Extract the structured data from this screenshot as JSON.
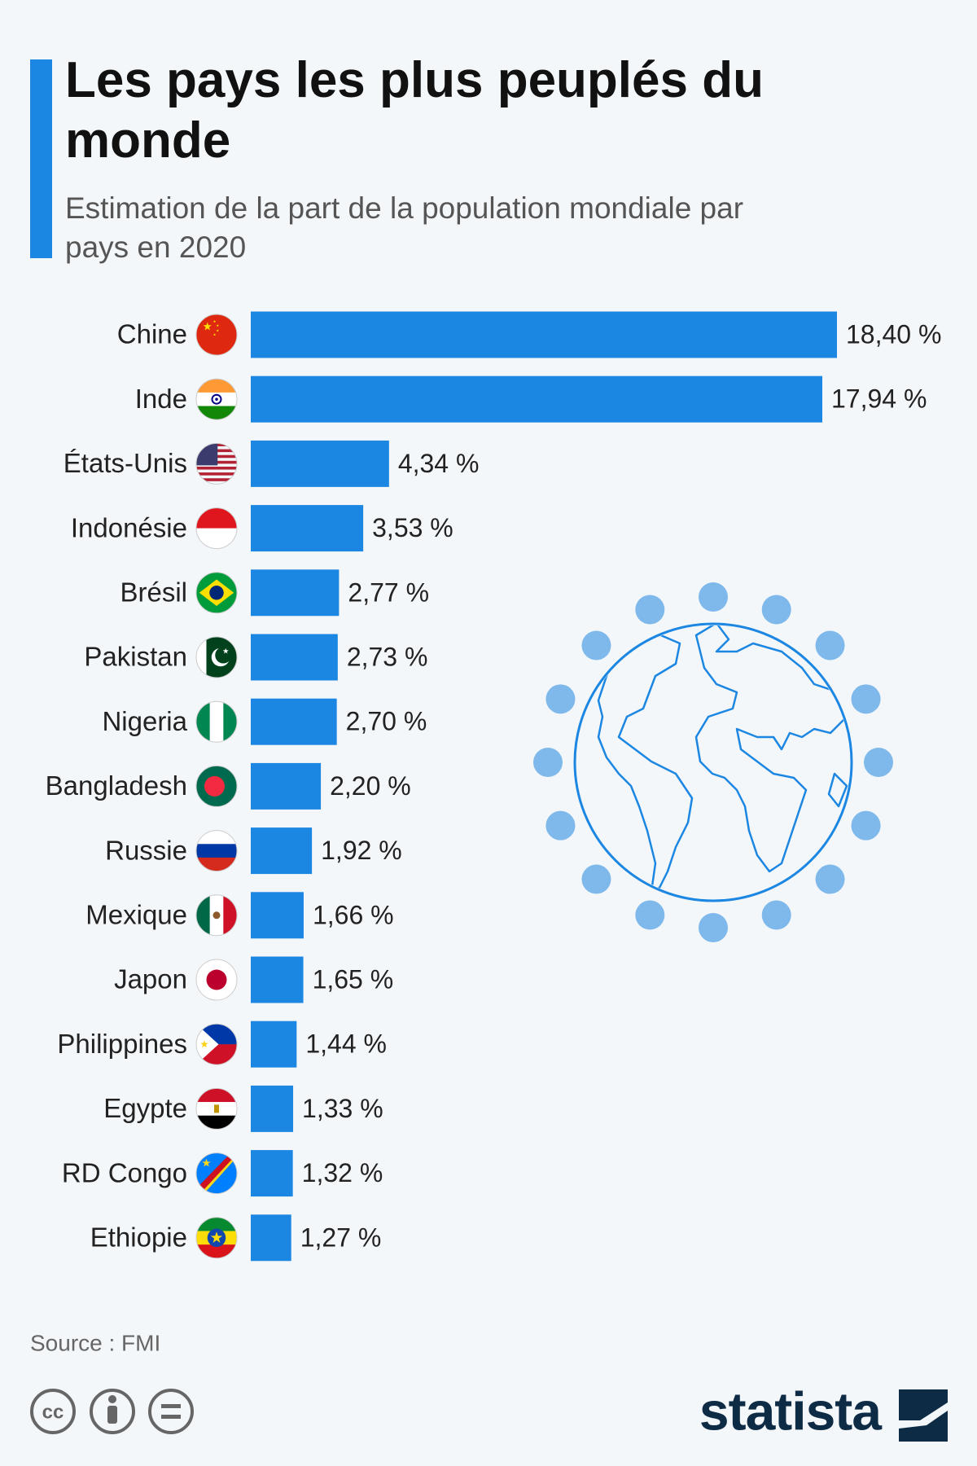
{
  "chart_data": {
    "type": "bar",
    "orientation": "horizontal",
    "title": "Les pays les plus peuplés du monde",
    "subtitle": "Estimation de la part de la population mondiale par pays en 2020",
    "categories": [
      "Chine",
      "Inde",
      "États-Unis",
      "Indonésie",
      "Brésil",
      "Pakistan",
      "Nigeria",
      "Bangladesh",
      "Russie",
      "Mexique",
      "Japon",
      "Philippines",
      "Egypte",
      "RD Congo",
      "Ethiopie"
    ],
    "values": [
      18.4,
      17.94,
      4.34,
      3.53,
      2.77,
      2.73,
      2.7,
      2.2,
      1.92,
      1.66,
      1.65,
      1.44,
      1.33,
      1.32,
      1.27
    ],
    "value_labels": [
      "18,40 %",
      "17,94 %",
      "4,34 %",
      "3,53 %",
      "2,77 %",
      "2,73 %",
      "2,70 %",
      "2,20 %",
      "1,92 %",
      "1,66 %",
      "1,65 %",
      "1,44 %",
      "1,33 %",
      "1,32 %",
      "1,27 %"
    ],
    "color": "#1c87e3",
    "source": "Source : FMI"
  },
  "footer": {
    "license": "cc",
    "logo": "statista"
  }
}
